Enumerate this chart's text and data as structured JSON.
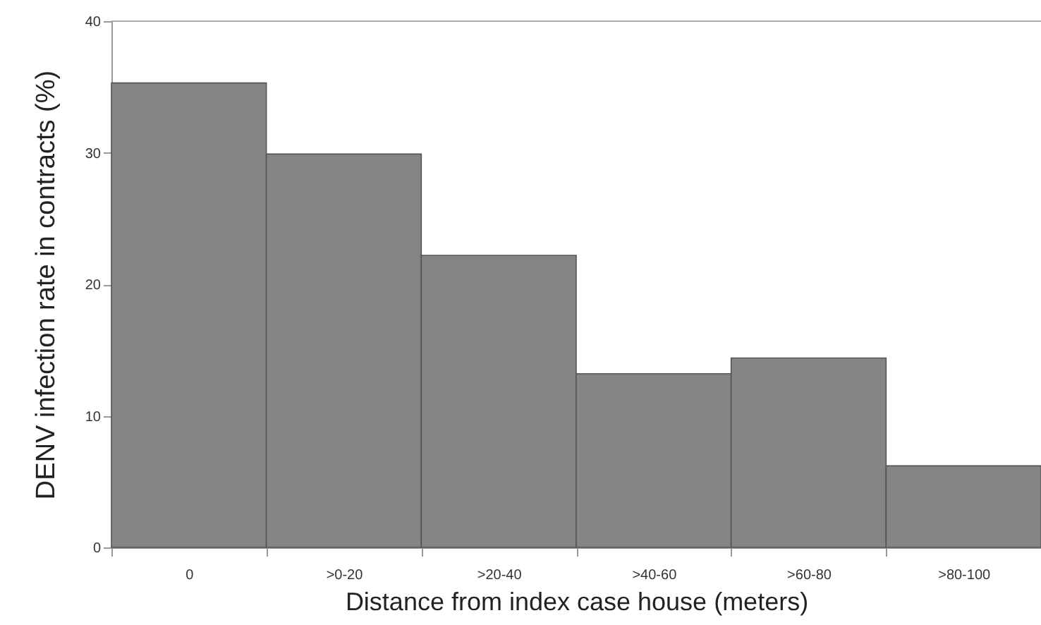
{
  "chart_data": {
    "type": "bar",
    "xlabel": "Distance from index case house (meters)",
    "ylabel": "DENV infection rate in contracts (%)",
    "categories": [
      "0",
      ">0-20",
      ">20-40",
      ">40-60",
      ">60-80",
      ">80-100"
    ],
    "values": [
      35.3,
      29.9,
      22.2,
      13.2,
      14.4,
      6.2
    ],
    "color": "#858585",
    "ylim": [
      0,
      40
    ],
    "yticks": [
      0,
      10,
      20,
      30,
      40
    ],
    "grid": false
  }
}
